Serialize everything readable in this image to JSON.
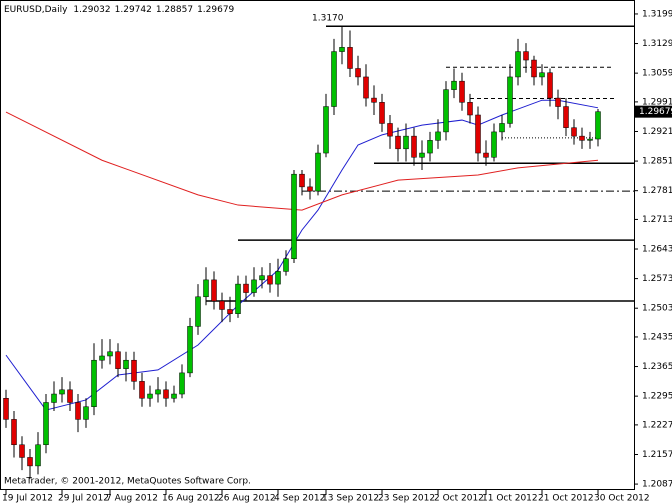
{
  "chart_data": {
    "type": "candlestick",
    "title": "EURUSD,Daily",
    "watermark": "MetaTrader, © 2001-2012, MetaQuotes Software Corp.",
    "up_color": "#00c000",
    "down_color": "#e00000",
    "open": [
      1.229,
      1.224,
      1.218,
      1.215,
      1.213,
      1.218,
      1.228,
      1.23,
      1.231,
      1.228,
      1.224,
      1.227,
      1.238,
      1.239,
      1.24,
      1.236,
      1.238,
      1.233,
      1.229,
      1.23,
      1.231,
      1.229,
      1.23,
      1.235,
      1.246,
      1.253,
      1.257,
      1.252,
      1.25,
      1.249,
      1.256,
      1.254,
      1.257,
      1.258,
      1.256,
      1.259,
      1.262,
      1.282,
      1.279,
      1.278,
      1.287,
      1.298,
      1.311,
      1.312,
      1.307,
      1.305,
      1.3,
      1.299,
      1.294,
      1.291,
      1.288,
      1.291,
      1.286,
      1.287,
      1.29,
      1.292,
      1.302,
      1.304,
      1.299,
      1.296,
      1.287,
      1.286,
      1.292,
      1.294,
      1.305,
      1.311,
      1.309,
      1.305,
      1.306,
      1.3,
      1.298,
      1.293,
      1.291,
      1.29,
      1.29032
    ],
    "high": [
      1.231,
      1.226,
      1.22,
      1.217,
      1.221,
      1.23,
      1.233,
      1.234,
      1.233,
      1.23,
      1.229,
      1.242,
      1.243,
      1.243,
      1.242,
      1.24,
      1.24,
      1.235,
      1.232,
      1.234,
      1.233,
      1.232,
      1.237,
      1.248,
      1.256,
      1.26,
      1.259,
      1.254,
      1.253,
      1.258,
      1.258,
      1.26,
      1.26,
      1.261,
      1.262,
      1.264,
      1.283,
      1.283,
      1.281,
      1.289,
      1.301,
      1.314,
      1.317,
      1.316,
      1.31,
      1.308,
      1.303,
      1.301,
      1.296,
      1.293,
      1.294,
      1.293,
      1.29,
      1.292,
      1.295,
      1.304,
      1.307,
      1.306,
      1.301,
      1.298,
      1.29,
      1.294,
      1.296,
      1.308,
      1.314,
      1.313,
      1.31,
      1.308,
      1.307,
      1.302,
      1.3,
      1.295,
      1.293,
      1.292,
      1.29742
    ],
    "low": [
      1.222,
      1.215,
      1.212,
      1.21,
      1.211,
      1.216,
      1.226,
      1.228,
      1.226,
      1.221,
      1.222,
      1.225,
      1.236,
      1.237,
      1.234,
      1.233,
      1.231,
      1.227,
      1.227,
      1.228,
      1.227,
      1.228,
      1.229,
      1.234,
      1.244,
      1.251,
      1.25,
      1.247,
      1.247,
      1.248,
      1.252,
      1.253,
      1.255,
      1.254,
      1.253,
      1.258,
      1.261,
      1.277,
      1.276,
      1.277,
      1.286,
      1.296,
      1.308,
      1.305,
      1.303,
      1.298,
      1.296,
      1.292,
      1.288,
      1.285,
      1.285,
      1.284,
      1.283,
      1.285,
      1.288,
      1.29,
      1.3,
      1.297,
      1.294,
      1.285,
      1.284,
      1.285,
      1.29,
      1.293,
      1.303,
      1.306,
      1.303,
      1.303,
      1.298,
      1.295,
      1.291,
      1.289,
      1.288,
      1.288,
      1.28857
    ],
    "close": [
      1.224,
      1.218,
      1.215,
      1.213,
      1.218,
      1.228,
      1.23,
      1.231,
      1.228,
      1.224,
      1.227,
      1.238,
      1.239,
      1.24,
      1.236,
      1.238,
      1.233,
      1.229,
      1.23,
      1.231,
      1.229,
      1.23,
      1.235,
      1.246,
      1.253,
      1.257,
      1.252,
      1.25,
      1.249,
      1.256,
      1.254,
      1.257,
      1.258,
      1.256,
      1.259,
      1.262,
      1.282,
      1.279,
      1.278,
      1.287,
      1.298,
      1.311,
      1.312,
      1.307,
      1.305,
      1.3,
      1.299,
      1.294,
      1.291,
      1.288,
      1.291,
      1.286,
      1.287,
      1.29,
      1.292,
      1.302,
      1.304,
      1.299,
      1.296,
      1.287,
      1.286,
      1.292,
      1.294,
      1.305,
      1.311,
      1.309,
      1.305,
      1.306,
      1.3,
      1.298,
      1.293,
      1.291,
      1.29,
      1.2903,
      1.29679
    ],
    "lines": [
      {
        "color": "#1f1fd0",
        "x": [
          0,
          5,
          10,
          14,
          19,
          24,
          29,
          34,
          37,
          39,
          42,
          44,
          47,
          52,
          57,
          59,
          62,
          67,
          69,
          74
        ],
        "values": [
          1.2392,
          1.2262,
          1.2286,
          1.2345,
          1.2357,
          1.2416,
          1.251,
          1.2593,
          1.2688,
          1.2735,
          1.283,
          1.2889,
          1.2913,
          1.2936,
          1.2948,
          1.2936,
          1.296,
          1.2995,
          1.2995,
          1.2977
        ]
      },
      {
        "color": "#e02020",
        "x": [
          0,
          12,
          24,
          29,
          37,
          42,
          49,
          59,
          64,
          74
        ],
        "values": [
          1.2967,
          1.2853,
          1.2771,
          1.2747,
          1.2735,
          1.2771,
          1.2806,
          1.2818,
          1.2835,
          1.2853
        ]
      }
    ],
    "levels": [
      {
        "value": 1.317,
        "label": "1.3170",
        "from": 40,
        "style": "solid"
      },
      {
        "value": 1.3073,
        "from": 55,
        "to": 76,
        "style": "dashed"
      },
      {
        "value": 1.2999,
        "from": 58,
        "to": 76,
        "style": "dashed"
      },
      {
        "value": 1.2906,
        "from": 62,
        "to": 74,
        "style": "dotted"
      },
      {
        "value": 1.2846,
        "from": 46,
        "style": "solid"
      },
      {
        "value": 1.278,
        "from": 37,
        "style": "dashdot"
      },
      {
        "value": 1.2664,
        "from": 29,
        "style": "solid"
      },
      {
        "value": 1.252,
        "from": 25,
        "style": "solid"
      }
    ],
    "xlim": [
      -0.75,
      78.5
    ],
    "ylim": [
      1.2073,
      1.3232
    ],
    "xticks": [
      {
        "value": 0,
        "label": "19 Jul 2012"
      },
      {
        "value": 7,
        "label": "29 Jul 2012"
      },
      {
        "value": 13,
        "label": "7 Aug 2012"
      },
      {
        "value": 20,
        "label": "16 Aug 2012"
      },
      {
        "value": 27,
        "label": "26 Aug 2012"
      },
      {
        "value": 34,
        "label": "4 Sep 2012"
      },
      {
        "value": 40,
        "label": "13 Sep 2012"
      },
      {
        "value": 47,
        "label": "23 Sep 2012"
      },
      {
        "value": 54,
        "label": "2 Oct 2012"
      },
      {
        "value": 60,
        "label": "11 Oct 2012"
      },
      {
        "value": 67,
        "label": "21 Oct 2012"
      },
      {
        "value": 74,
        "label": "30 Oct 2012"
      }
    ],
    "yticks": [
      {
        "value": 1.3199,
        "label": "1.31990"
      },
      {
        "value": 1.3129,
        "label": "1.31290"
      },
      {
        "value": 1.3059,
        "label": "1.30590"
      },
      {
        "value": 1.2991,
        "label": "1.29910"
      },
      {
        "value": 1.2921,
        "label": "1.29210"
      },
      {
        "value": 1.2851,
        "label": "1.28510"
      },
      {
        "value": 1.2781,
        "label": "1.27810"
      },
      {
        "value": 1.2713,
        "label": "1.27130"
      },
      {
        "value": 1.2643,
        "label": "1.26430"
      },
      {
        "value": 1.2573,
        "label": "1.25730"
      },
      {
        "value": 1.2503,
        "label": "1.25030"
      },
      {
        "value": 1.2435,
        "label": "1.24350"
      },
      {
        "value": 1.2365,
        "label": "1.23650"
      },
      {
        "value": 1.2295,
        "label": "1.22950"
      },
      {
        "value": 1.2227,
        "label": "1.22270"
      },
      {
        "value": 1.2157,
        "label": "1.21570"
      },
      {
        "value": 1.2087,
        "label": "1.20870"
      }
    ]
  }
}
